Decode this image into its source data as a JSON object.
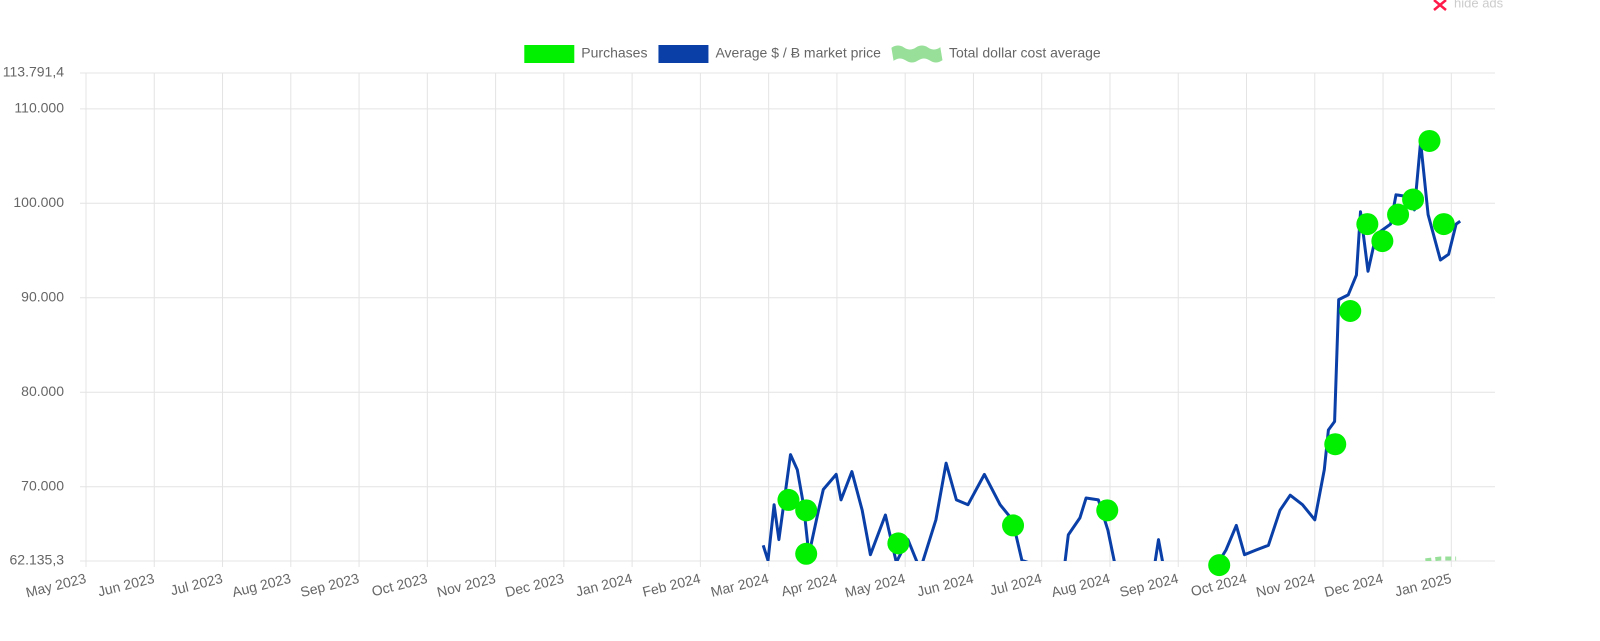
{
  "ui": {
    "hide_ads": "hide ads"
  },
  "chart_data": {
    "type": "line",
    "legend": "top",
    "grid": true,
    "xlim": [
      0,
      20.64
    ],
    "xticks": [
      {
        "value": 0,
        "label": "May 2023"
      },
      {
        "value": 1,
        "label": "Jun 2023"
      },
      {
        "value": 2,
        "label": "Jul 2023"
      },
      {
        "value": 3,
        "label": "Aug 2023"
      },
      {
        "value": 4,
        "label": "Sep 2023"
      },
      {
        "value": 5,
        "label": "Oct 2023"
      },
      {
        "value": 6,
        "label": "Nov 2023"
      },
      {
        "value": 7,
        "label": "Dec 2023"
      },
      {
        "value": 8,
        "label": "Jan 2024"
      },
      {
        "value": 9,
        "label": "Feb 2024"
      },
      {
        "value": 10,
        "label": "Mar 2024"
      },
      {
        "value": 11,
        "label": "Apr 2024"
      },
      {
        "value": 12,
        "label": "May 2024"
      },
      {
        "value": 13,
        "label": "Jun 2024"
      },
      {
        "value": 14,
        "label": "Jul 2024"
      },
      {
        "value": 15,
        "label": "Aug 2024"
      },
      {
        "value": 16,
        "label": "Sep 2024"
      },
      {
        "value": 17,
        "label": "Oct 2024"
      },
      {
        "value": 18,
        "label": "Nov 2024"
      },
      {
        "value": 19,
        "label": "Dec 2024"
      },
      {
        "value": 20,
        "label": "Jan 2025"
      }
    ],
    "ylim": [
      62135.3,
      113791.4
    ],
    "yticks": [
      {
        "value": 62135.3,
        "label": "62.135,3"
      },
      {
        "value": 70000,
        "label": "70.000"
      },
      {
        "value": 80000,
        "label": "80.000"
      },
      {
        "value": 90000,
        "label": "90.000"
      },
      {
        "value": 100000,
        "label": "100.000"
      },
      {
        "value": 110000,
        "label": "110.000"
      },
      {
        "value": 113791.4,
        "label": "113.791,4"
      }
    ],
    "series": [
      {
        "name": "Purchases",
        "type": "scatter",
        "color": "#00f000",
        "x": [
          10.29,
          10.55,
          10.55,
          11.9,
          13.58,
          14.96,
          16.6,
          18.3,
          18.52,
          18.77,
          18.99,
          19.22,
          19.44,
          19.68,
          19.89
        ],
        "values": [
          68600,
          67500,
          62900,
          64000,
          65900,
          67500,
          61700,
          74500,
          88600,
          97800,
          96000,
          98800,
          100400,
          106600,
          97800
        ]
      },
      {
        "name": "Average $ / Ƀ market price",
        "type": "line",
        "color": "#0a3fa8",
        "x": [
          9.92,
          9.99,
          10.08,
          10.15,
          10.32,
          10.42,
          10.51,
          10.59,
          10.73,
          10.8,
          10.99,
          11.06,
          11.22,
          11.37,
          11.49,
          11.71,
          11.87,
          12.04,
          12.22,
          12.45,
          12.6,
          12.75,
          12.92,
          13.16,
          13.39,
          13.57,
          13.71,
          13.92,
          14.12,
          14.3,
          14.39,
          14.56,
          14.65,
          14.83,
          14.97,
          15.12,
          15.38,
          15.62,
          15.71,
          15.82,
          16.15,
          16.47,
          16.7,
          16.85,
          16.97,
          17.14,
          17.32,
          17.49,
          17.64,
          17.82,
          18.0,
          18.14,
          18.2,
          18.29,
          18.35,
          18.49,
          18.61,
          18.67,
          18.78,
          18.9,
          19.11,
          19.19,
          19.37,
          19.46,
          19.55,
          19.66,
          19.84,
          19.96,
          20.07,
          20.13
        ],
        "values": [
          63800,
          62200,
          68100,
          64400,
          73400,
          71800,
          68100,
          62800,
          67500,
          69700,
          71300,
          68600,
          71600,
          67500,
          62800,
          67000,
          62000,
          64400,
          61200,
          66500,
          72500,
          68600,
          68100,
          71300,
          68100,
          66500,
          62200,
          61700,
          59600,
          59600,
          64900,
          66700,
          68800,
          68600,
          65400,
          60100,
          58000,
          60100,
          64400,
          60100,
          59100,
          60600,
          63300,
          65900,
          62800,
          63300,
          63800,
          67500,
          69100,
          68100,
          66500,
          71800,
          76000,
          76900,
          89800,
          90300,
          92400,
          99100,
          92800,
          96700,
          97800,
          100900,
          100700,
          99300,
          106500,
          98800,
          94000,
          94600,
          97800,
          98100
        ]
      },
      {
        "name": "Total dollar cost average",
        "type": "line",
        "dashed": true,
        "color": "#98e09a",
        "x": [
          19.62,
          19.84,
          20.07
        ],
        "values": [
          62200,
          62400,
          62400
        ]
      }
    ]
  }
}
